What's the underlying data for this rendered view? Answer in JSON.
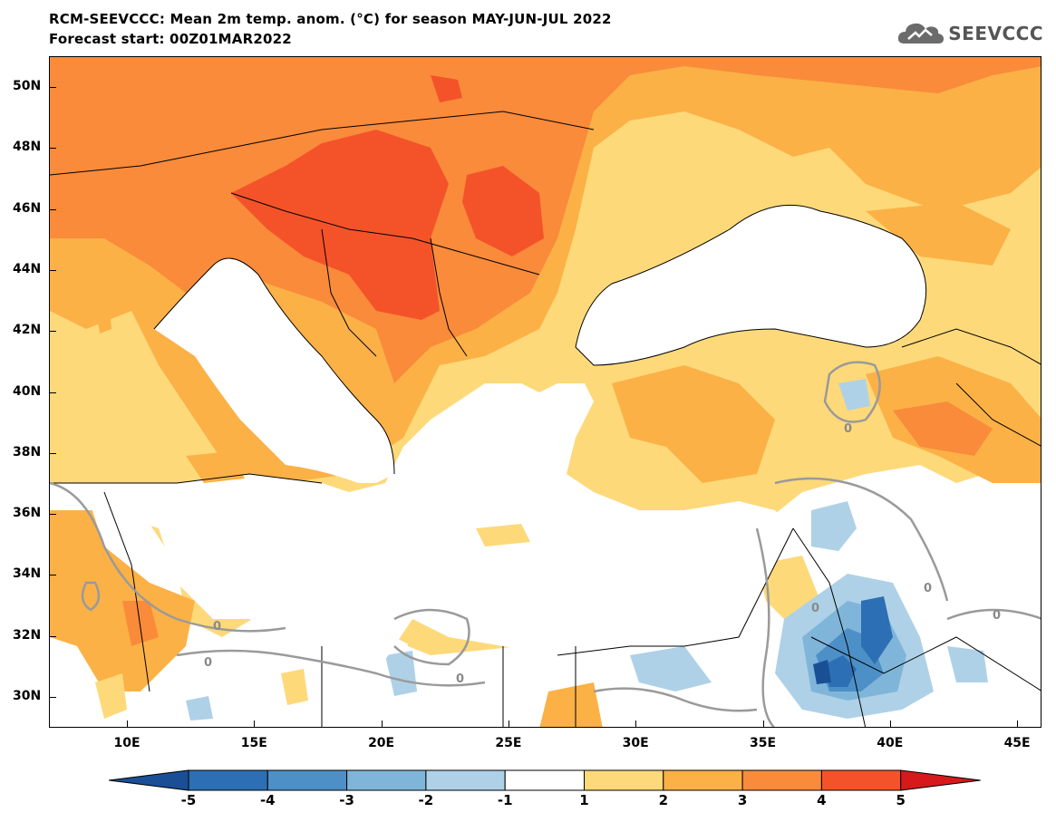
{
  "title": {
    "line1": "RCM-SEEVCCC: Mean 2m temp. anom. (°C) for season MAY-JUN-JUL 2022",
    "line2": "Forecast start: 00Z01MAR2022"
  },
  "logo": {
    "text": "SEEVCCC",
    "icon": "cloud-icon"
  },
  "map": {
    "lat_ticks": [
      "50N",
      "48N",
      "46N",
      "44N",
      "42N",
      "40N",
      "38N",
      "36N",
      "34N",
      "32N",
      "30N"
    ],
    "lon_ticks": [
      "10E",
      "15E",
      "20E",
      "25E",
      "30E",
      "35E",
      "40E",
      "45E"
    ],
    "contour_labels": [
      "0",
      "0",
      "0",
      "0",
      "0",
      "0",
      "0"
    ]
  },
  "colorbar": {
    "labels": [
      "-5",
      "-4",
      "-3",
      "-2",
      "-1",
      "1",
      "2",
      "3",
      "4",
      "5"
    ],
    "colors": [
      "#1a4f96",
      "#2c6fb4",
      "#4d90c7",
      "#80b5da",
      "#aed1e7",
      "#ffffff",
      "#fdd97a",
      "#fbb146",
      "#f98b3b",
      "#f4532a",
      "#d7191c"
    ]
  }
}
